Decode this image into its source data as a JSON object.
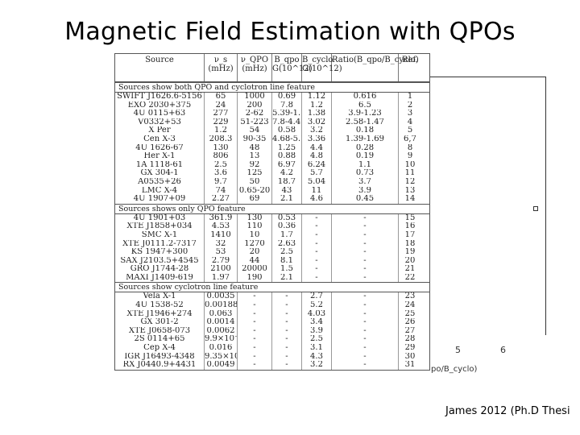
{
  "title": "Magnetic Field Estimation with QPOs",
  "citation": "James 2012 (Ph.D Thesi",
  "plot": {
    "x_ticks": [
      "5",
      "6"
    ],
    "x_label": "po/B_cyclo)"
  },
  "table": {
    "headers": {
      "source": "Source",
      "nu_s": "ν_s",
      "nu_s_unit": "(mHz)",
      "nu_qpo": "ν_QPO",
      "nu_qpo_unit": "(mHz)",
      "b_qpo": "B_qpo",
      "b_qpo_unit": "G(10^12)",
      "b_cyclo": "B_cyclo",
      "b_cyclo_unit": "G(10^12)",
      "ratio": "Ratio(B_qpo/B_cyclo)",
      "ref": "Ref."
    },
    "sections": [
      {
        "label": "Sources show both QPO and cyclotron line feature",
        "rows": [
          [
            "SWIFT J1626.6-5156",
            "65",
            "1000",
            "0.69",
            "1.12",
            "0.616",
            "1"
          ],
          [
            "EXO 2030+375",
            "24",
            "200",
            "7.8",
            "1.2",
            "6.5",
            "2"
          ],
          [
            "4U 0115+63",
            "277",
            "2-62",
            "5.39-1.7",
            "1.38",
            "3.9-1.23",
            "3"
          ],
          [
            "V0332+53",
            "229",
            "51-223",
            "7.8-4.45",
            "3.02",
            "2.58-1.47",
            "4"
          ],
          [
            "X Per",
            "1.2",
            "54",
            "0.58",
            "3.2",
            "0.18",
            "5"
          ],
          [
            "Cen X-3",
            "208.3",
            "90-35",
            "4.68-5.7",
            "3.36",
            "1.39-1.69",
            "6,7"
          ],
          [
            "4U 1626-67",
            "130",
            "48",
            "1.25",
            "4.4",
            "0.28",
            "8"
          ],
          [
            "Her X-1",
            "806",
            "13",
            "0.88",
            "4.8",
            "0.19",
            "9"
          ],
          [
            "1A 1118-61",
            "2.5",
            "92",
            "6.97",
            "6.24",
            "1.1",
            "10"
          ],
          [
            "GX 304-1",
            "3.6",
            "125",
            "4.2",
            "5.7",
            "0.73",
            "11"
          ],
          [
            "A0535+26",
            "9.7",
            "50",
            "18.7",
            "5.04",
            "3.7",
            "12"
          ],
          [
            "LMC X-4",
            "74",
            "0.65-20",
            "43",
            "11",
            "3.9",
            "13"
          ],
          [
            "4U 1907+09",
            "2.27",
            "69",
            "2.1",
            "4.6",
            "0.45",
            "14"
          ]
        ]
      },
      {
        "label": "Sources shows only QPO feature",
        "rows": [
          [
            "4U 1901+03",
            "361.9",
            "130",
            "0.53",
            "-",
            "-",
            "15"
          ],
          [
            "XTE J1858+034",
            "4.53",
            "110",
            "0.36",
            "-",
            "-",
            "16"
          ],
          [
            "SMC X-1",
            "1410",
            "10",
            "1.7",
            "-",
            "-",
            "17"
          ],
          [
            "XTE J0111.2-7317",
            "32",
            "1270",
            "2.63",
            "-",
            "-",
            "18"
          ],
          [
            "KS 1947+300",
            "53",
            "20",
            "2.5",
            "-",
            "-",
            "19"
          ],
          [
            "SAX J2103.5+4545",
            "2.79",
            "44",
            "8.1",
            "-",
            "-",
            "20"
          ],
          [
            "GRO J1744-28",
            "2100",
            "20000",
            "1.5",
            "-",
            "-",
            "21"
          ],
          [
            "MAXI J1409-619",
            "1.97",
            "190",
            "2.1",
            "-",
            "-",
            "22"
          ]
        ]
      },
      {
        "label": "Sources show cyclotron line feature",
        "rows": [
          [
            "Vela X-1",
            "0.0035",
            "-",
            "-",
            "2.7",
            "-",
            "23"
          ],
          [
            "4U 1538-52",
            "0.00188",
            "-",
            "-",
            "5.2",
            "-",
            "24"
          ],
          [
            "XTE J1946+274",
            "0.063",
            "-",
            "-",
            "4.03",
            "-",
            "25"
          ],
          [
            "GX 301-2",
            "0.0014",
            "-",
            "-",
            "3.4",
            "-",
            "26"
          ],
          [
            "XTE J0658-073",
            "0.0062",
            "-",
            "-",
            "3.9",
            "-",
            "27"
          ],
          [
            "2S 0114+65",
            "9.9×10⁻⁴",
            "-",
            "-",
            "2.5",
            "-",
            "28"
          ],
          [
            "Cep X-4",
            "0.016",
            "-",
            "-",
            "3.1",
            "-",
            "29"
          ],
          [
            "IGR J16493-4348",
            "9.35×10⁻⁴",
            "-",
            "-",
            "4.3",
            "-",
            "30"
          ],
          [
            "RX J0440.9+4431",
            "0.0049",
            "-",
            "-",
            "3.2",
            "-",
            "31"
          ]
        ]
      }
    ]
  }
}
